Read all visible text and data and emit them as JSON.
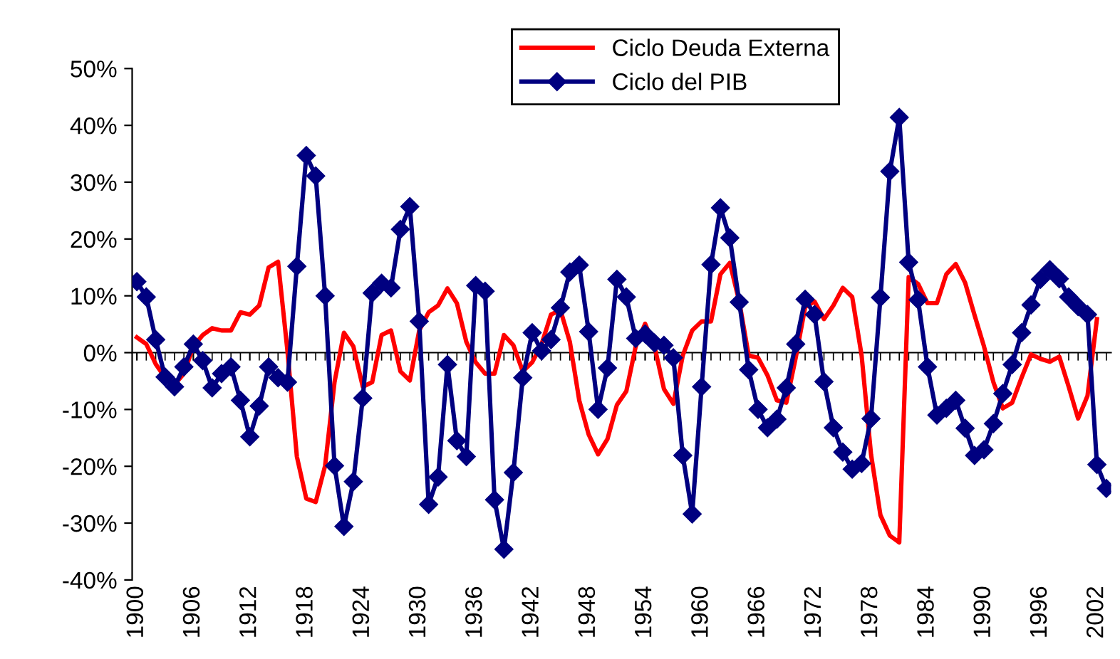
{
  "chart_data": {
    "type": "line",
    "x": [
      1900,
      1901,
      1902,
      1903,
      1904,
      1905,
      1906,
      1907,
      1908,
      1909,
      1910,
      1911,
      1912,
      1913,
      1914,
      1915,
      1916,
      1917,
      1918,
      1919,
      1920,
      1921,
      1922,
      1923,
      1924,
      1925,
      1926,
      1927,
      1928,
      1929,
      1930,
      1931,
      1932,
      1933,
      1934,
      1935,
      1936,
      1937,
      1938,
      1939,
      1940,
      1941,
      1942,
      1943,
      1944,
      1945,
      1946,
      1947,
      1948,
      1949,
      1950,
      1951,
      1952,
      1953,
      1954,
      1955,
      1956,
      1957,
      1958,
      1959,
      1960,
      1961,
      1962,
      1963,
      1964,
      1965,
      1966,
      1967,
      1968,
      1969,
      1970,
      1971,
      1972,
      1973,
      1974,
      1975,
      1976,
      1977,
      1978,
      1979,
      1980,
      1981,
      1982,
      1983,
      1984,
      1985,
      1986,
      1987,
      1988,
      1989,
      1990,
      1991,
      1992,
      1993,
      1994,
      1995,
      1996,
      1997,
      1998,
      1999,
      2000,
      2001,
      2002,
      2003
    ],
    "series": [
      {
        "name": "Ciclo Deuda Externa",
        "color": "#ff0000",
        "marker": "none",
        "values": [
          2.7,
          1.5,
          -2,
          -4.4,
          -5.6,
          -3.7,
          1.1,
          3.1,
          4.3,
          3.9,
          3.9,
          7.1,
          6.7,
          8.3,
          15,
          16,
          0.3,
          -18.3,
          -25.7,
          -26.3,
          -19.9,
          -5.2,
          3.5,
          1.1,
          -6,
          -5.2,
          3.1,
          3.9,
          -3.3,
          -4.9,
          3.9,
          7.1,
          8.3,
          11.3,
          8.7,
          1.9,
          -1.7,
          -3.7,
          -3.7,
          3.1,
          1.3,
          -3.3,
          -1.7,
          1.5,
          6.7,
          7.5,
          1.9,
          -8.4,
          -14.4,
          -17.9,
          -15.2,
          -9.2,
          -6.8,
          1.1,
          5.1,
          1.1,
          -6.4,
          -9,
          -0.5,
          3.9,
          5.5,
          5.5,
          13.8,
          15.8,
          9,
          -0.5,
          -0.9,
          -4,
          -8.4,
          -8.8,
          -0.9,
          8,
          9,
          5.9,
          8.3,
          11.4,
          9.8,
          -0.5,
          -17.9,
          -28.6,
          -32.2,
          -33.4,
          13.3,
          12.1,
          8.7,
          8.7,
          13.8,
          15.6,
          12.3,
          6.6,
          1.1,
          -5.2,
          -9.8,
          -8.8,
          -4.4,
          -0.3,
          -1.1,
          -1.6,
          -0.7,
          -6,
          -11.6,
          -7.6,
          5.9,
          null
        ]
      },
      {
        "name": "Ciclo del PIB",
        "color": "#000080",
        "marker": "diamond",
        "values": [
          12.5,
          9.8,
          2.3,
          -4.3,
          -6,
          -2.5,
          1.5,
          -1.4,
          -6.2,
          -3.7,
          -2.5,
          -8.4,
          -14.8,
          -9.4,
          -2.5,
          -4.4,
          -5.2,
          15.2,
          34.7,
          31.1,
          10,
          -19.9,
          -30.6,
          -22.7,
          -8,
          10.5,
          12.2,
          11.4,
          21.7,
          25.7,
          5.5,
          -26.7,
          -21.9,
          -2.1,
          -15.5,
          -18.3,
          11.8,
          10.8,
          -25.9,
          -34.6,
          -21.1,
          -4.4,
          3.5,
          0.3,
          2.3,
          7.9,
          14.2,
          15.4,
          3.7,
          -10,
          -2.7,
          12.9,
          9.8,
          2.5,
          3.3,
          1.7,
          1.3,
          -0.9,
          -18.1,
          -28.4,
          -6,
          15.5,
          25.5,
          20.2,
          8.9,
          -3,
          -10,
          -13.2,
          -11.7,
          -6.2,
          1.5,
          9.4,
          6.7,
          -5.1,
          -13.2,
          -17.5,
          -20.5,
          -19.5,
          -11.6,
          9.7,
          31.9,
          41.4,
          15.9,
          9.3,
          -2.5,
          -11,
          -9.8,
          -8.4,
          -13.3,
          -18.1,
          -17.1,
          -12.5,
          -7.2,
          -2.1,
          3.5,
          8.4,
          12.9,
          14.6,
          13,
          9.8,
          8.1,
          6.7,
          -19.7,
          -23.9
        ]
      }
    ],
    "xlim": [
      1899.5,
      2003.5
    ],
    "xticks": [
      1900,
      1906,
      1912,
      1918,
      1924,
      1930,
      1936,
      1942,
      1948,
      1954,
      1960,
      1966,
      1972,
      1978,
      1984,
      1990,
      1996,
      2002
    ],
    "ylim": [
      -40,
      50
    ],
    "yticks": [
      {
        "value": -40,
        "label": "-40%"
      },
      {
        "value": -30,
        "label": "-30%"
      },
      {
        "value": -20,
        "label": "-20%"
      },
      {
        "value": -10,
        "label": "-10%"
      },
      {
        "value": 0,
        "label": "0%"
      },
      {
        "value": 10,
        "label": "10%"
      },
      {
        "value": 20,
        "label": "20%"
      },
      {
        "value": 30,
        "label": "30%"
      },
      {
        "value": 40,
        "label": "40%"
      },
      {
        "value": 50,
        "label": "50%"
      }
    ],
    "legend": "top"
  }
}
